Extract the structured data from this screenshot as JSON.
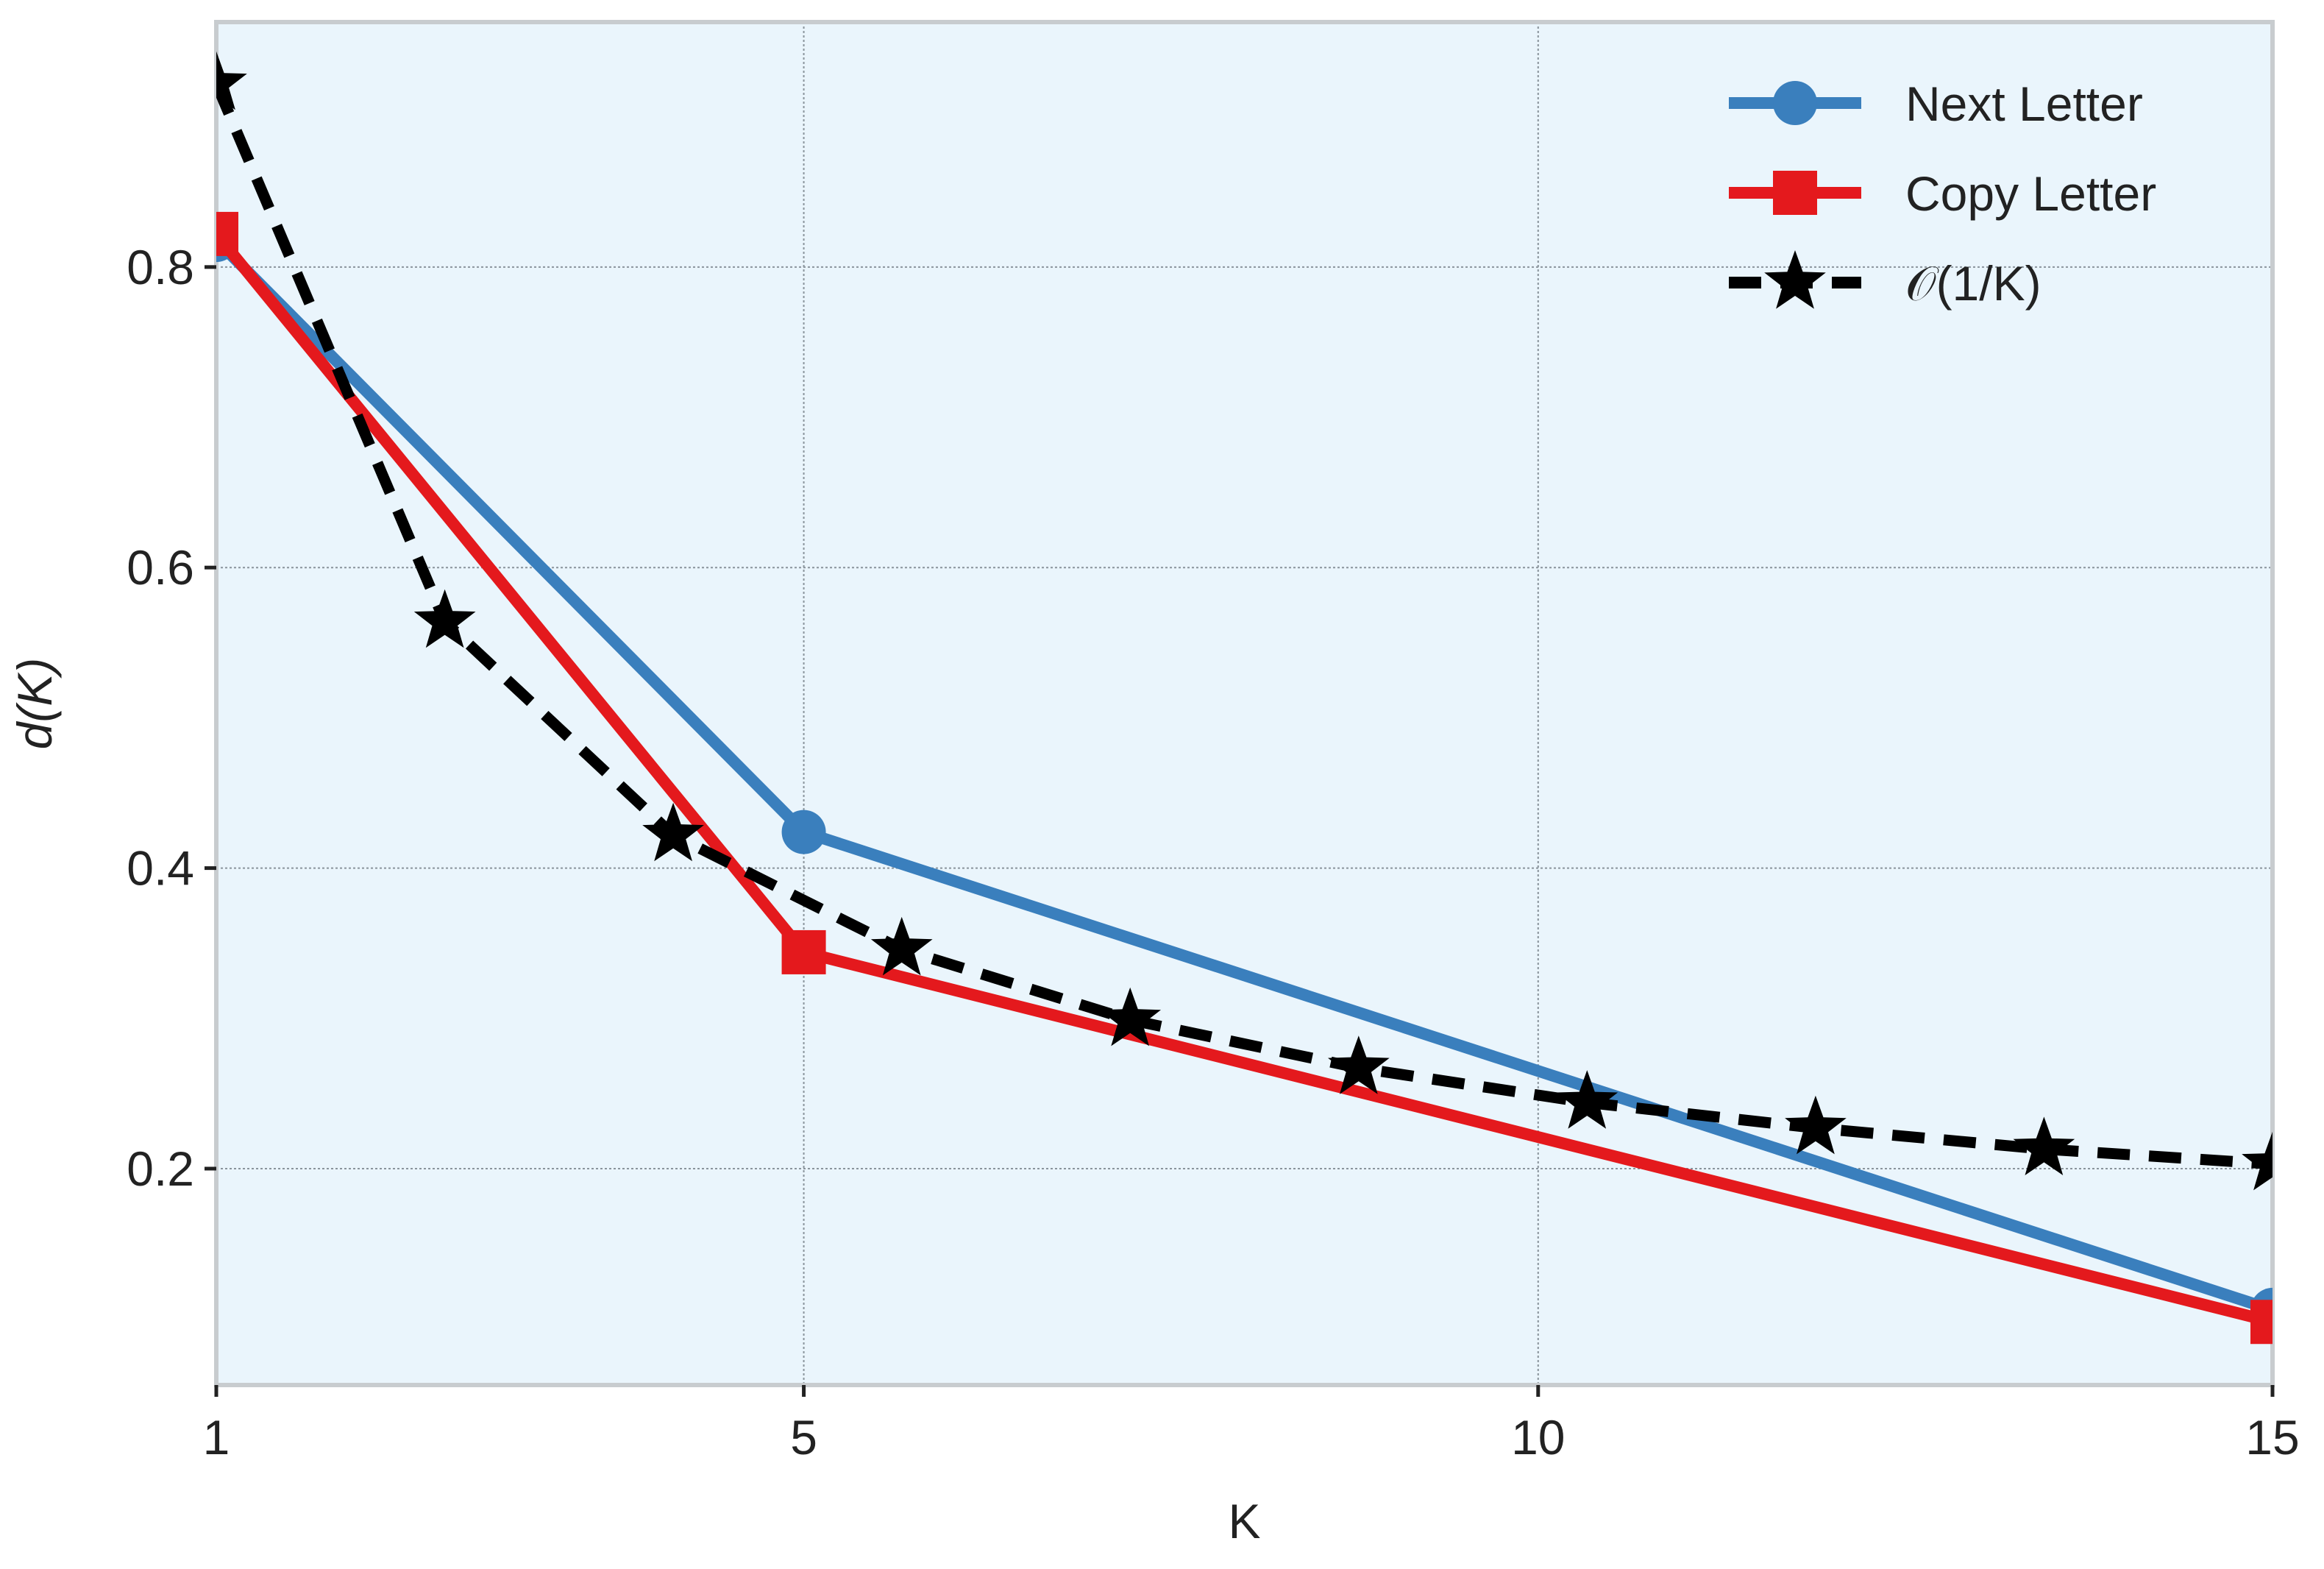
{
  "chart_data": {
    "type": "line",
    "xlabel": "K",
    "ylabel": "d(K)",
    "xlim": [
      1,
      15
    ],
    "ylim": [
      0.056,
      0.963
    ],
    "xticks": [
      1,
      5,
      10,
      15
    ],
    "yticks": [
      0.2,
      0.4,
      0.6,
      0.8
    ],
    "xtick_labels": [
      "1",
      "5",
      "10",
      "15"
    ],
    "ytick_labels": [
      "0.2",
      "0.4",
      "0.6",
      "0.8"
    ],
    "grid": true,
    "legend_position": "top-right",
    "background_color": "#eaf5fc",
    "series": [
      {
        "name": "Next Letter",
        "color": "#3a7fbd",
        "marker": "circle",
        "line_style": "solid",
        "x": [
          1,
          5,
          15
        ],
        "y": [
          0.818,
          0.424,
          0.106
        ]
      },
      {
        "name": "Copy Letter",
        "color": "#e4191d",
        "marker": "square",
        "line_style": "solid",
        "x": [
          1,
          5,
          15
        ],
        "y": [
          0.822,
          0.344,
          0.098
        ]
      },
      {
        "name": "𝒪(1/K)",
        "color": "#000000",
        "marker": "star",
        "line_style": "dashed",
        "x": [
          1,
          2.556,
          4.111,
          5.667,
          7.222,
          8.778,
          10.333,
          11.889,
          13.444,
          15
        ],
        "y": [
          0.922,
          0.564,
          0.422,
          0.346,
          0.299,
          0.267,
          0.244,
          0.227,
          0.213,
          0.203
        ]
      }
    ]
  }
}
